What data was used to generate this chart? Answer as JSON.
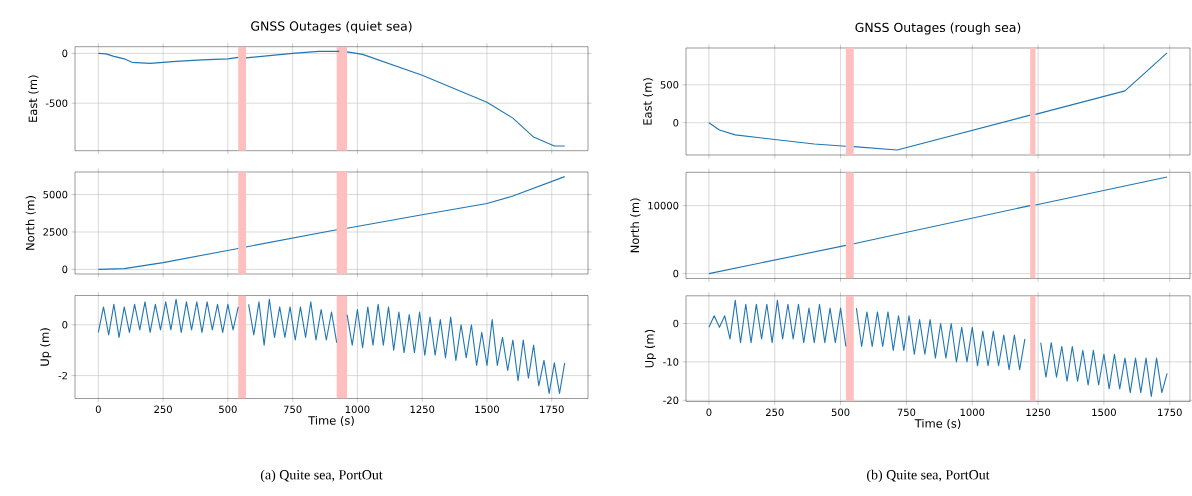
{
  "chart_data": [
    {
      "type": "line",
      "title": "GNSS Outages (quiet sea)",
      "ylabel": "East (m)",
      "xlim": [
        -90,
        1890
      ],
      "ylim": [
        -977,
        67
      ],
      "xticks": [
        0,
        250,
        500,
        750,
        1000,
        1250,
        1500,
        1750
      ],
      "yticks": [
        -500,
        0
      ],
      "tick_labels": "y",
      "grid": true,
      "bands": [
        {
          "axis": "x",
          "from": 540,
          "to": 570,
          "color": "#ffbfbf"
        },
        {
          "axis": "x",
          "from": 920,
          "to": 960,
          "color": "#ffbfbf"
        }
      ],
      "series": [
        {
          "color": "#1f77b4",
          "x": [
            0,
            30,
            60,
            100,
            130,
            200,
            300,
            400,
            500,
            540,
            555,
            570,
            750,
            850,
            930,
            945,
            960,
            1020,
            1250,
            1500,
            1600,
            1680,
            1760,
            1800
          ],
          "values": [
            0,
            -5,
            -30,
            -55,
            -90,
            -100,
            -80,
            -65,
            -55,
            -40,
            null,
            -45,
            0,
            20,
            20,
            null,
            15,
            -10,
            -220,
            -490,
            -650,
            -840,
            -930,
            -930
          ]
        }
      ]
    },
    {
      "type": "line",
      "title": "GNSS Outages (rough sea)",
      "ylabel": "East (m)",
      "xlim": [
        -87,
        1827
      ],
      "ylim": [
        -425,
        985
      ],
      "xticks": [
        0,
        250,
        500,
        750,
        1000,
        1250,
        1500,
        1750
      ],
      "yticks": [
        0,
        500
      ],
      "tick_labels": "y",
      "grid": true,
      "bands": [
        {
          "axis": "x",
          "from": 520,
          "to": 550,
          "color": "#ffbfbf"
        },
        {
          "axis": "x",
          "from": 1220,
          "to": 1240,
          "color": "#ffbfbf"
        }
      ],
      "series": [
        {
          "color": "#1f77b4",
          "x": [
            0,
            40,
            100,
            250,
            400,
            520,
            535,
            550,
            715,
            1220,
            1230,
            1240,
            1580,
            1740
          ],
          "values": [
            0,
            -95,
            -160,
            -220,
            -280,
            -310,
            null,
            -315,
            -360,
            100,
            null,
            110,
            420,
            920
          ]
        }
      ]
    },
    {
      "type": "line",
      "ylabel": "North (m)",
      "xlim": [
        -90,
        1890
      ],
      "ylim": [
        -310,
        6510
      ],
      "xticks": [
        0,
        250,
        500,
        750,
        1000,
        1250,
        1500,
        1750
      ],
      "yticks": [
        0,
        2500,
        5000
      ],
      "tick_labels": "y",
      "grid": true,
      "bands": [
        {
          "axis": "x",
          "from": 540,
          "to": 570,
          "color": "#ffbfbf"
        },
        {
          "axis": "x",
          "from": 920,
          "to": 960,
          "color": "#ffbfbf"
        }
      ],
      "series": [
        {
          "color": "#1f77b4",
          "x": [
            0,
            100,
            250,
            540,
            555,
            570,
            920,
            940,
            960,
            1250,
            1500,
            1600,
            1800
          ],
          "values": [
            0,
            50,
            450,
            1400,
            null,
            1500,
            2650,
            null,
            2750,
            3650,
            4400,
            4900,
            6200
          ]
        }
      ]
    },
    {
      "type": "line",
      "ylabel": "North (m)",
      "xlim": [
        -87,
        1827
      ],
      "ylim": [
        -720,
        14900
      ],
      "xticks": [
        0,
        250,
        500,
        750,
        1000,
        1250,
        1500,
        1750
      ],
      "yticks": [
        0,
        10000
      ],
      "tick_labels": "y",
      "grid": true,
      "bands": [
        {
          "axis": "x",
          "from": 520,
          "to": 550,
          "color": "#ffbfbf"
        },
        {
          "axis": "x",
          "from": 1220,
          "to": 1240,
          "color": "#ffbfbf"
        }
      ],
      "series": [
        {
          "color": "#1f77b4",
          "x": [
            0,
            520,
            535,
            550,
            1220,
            1230,
            1240,
            1740
          ],
          "values": [
            0,
            4150,
            null,
            4400,
            10000,
            null,
            10100,
            14200
          ]
        }
      ]
    },
    {
      "type": "line",
      "ylabel": "Up (m)",
      "xlabel": "Time (s)",
      "xlim": [
        -90,
        1890
      ],
      "ylim": [
        -2.9,
        1.15
      ],
      "xticks": [
        0,
        250,
        500,
        750,
        1000,
        1250,
        1500,
        1750
      ],
      "yticks": [
        -2,
        0
      ],
      "grid": true,
      "annotations": [
        "(a) Quite sea, PortOut"
      ],
      "bands": [
        {
          "axis": "x",
          "from": 540,
          "to": 570,
          "color": "#ffbfbf"
        },
        {
          "axis": "x",
          "from": 920,
          "to": 960,
          "color": "#ffbfbf"
        }
      ],
      "series": [
        {
          "color": "#1f77b4",
          "x": [
            0,
            20,
            40,
            60,
            80,
            100,
            120,
            140,
            160,
            180,
            200,
            220,
            240,
            260,
            280,
            300,
            320,
            340,
            360,
            380,
            400,
            420,
            440,
            460,
            480,
            500,
            520,
            540,
            560,
            580,
            600,
            620,
            640,
            660,
            680,
            700,
            720,
            740,
            760,
            780,
            800,
            820,
            840,
            860,
            880,
            900,
            920,
            940,
            960,
            980,
            1000,
            1020,
            1040,
            1060,
            1080,
            1100,
            1120,
            1140,
            1160,
            1180,
            1200,
            1220,
            1240,
            1260,
            1280,
            1300,
            1320,
            1340,
            1360,
            1380,
            1400,
            1420,
            1440,
            1460,
            1480,
            1500,
            1520,
            1540,
            1560,
            1580,
            1600,
            1620,
            1640,
            1660,
            1680,
            1700,
            1720,
            1740,
            1760,
            1780,
            1800
          ],
          "values": [
            -0.3,
            0.7,
            -0.4,
            0.8,
            -0.5,
            0.7,
            -0.3,
            0.8,
            -0.2,
            0.9,
            -0.3,
            0.8,
            -0.2,
            0.9,
            -0.2,
            1.0,
            -0.3,
            0.9,
            -0.2,
            0.9,
            -0.3,
            0.9,
            -0.2,
            0.8,
            -0.3,
            0.8,
            -0.2,
            0.7,
            null,
            0.8,
            -0.4,
            0.9,
            -0.8,
            1.0,
            -0.5,
            0.7,
            -0.5,
            0.7,
            -0.6,
            0.7,
            -0.5,
            0.9,
            -0.6,
            0.6,
            -0.6,
            0.5,
            -0.7,
            null,
            0.4,
            -0.8,
            0.6,
            -0.9,
            0.7,
            -0.8,
            0.8,
            -0.8,
            0.7,
            -1.0,
            0.5,
            -1.1,
            0.4,
            -1.1,
            0.5,
            -1.2,
            0.3,
            -1.2,
            0.2,
            -1.3,
            0.3,
            -1.4,
            0.0,
            -1.3,
            0.0,
            -1.6,
            -0.3,
            -1.6,
            0.2,
            -1.6,
            -0.5,
            -1.8,
            -0.6,
            -2.2,
            -0.6,
            -2.1,
            -0.8,
            -2.4,
            -1.4,
            -2.7,
            -1.5,
            -2.7,
            -1.5
          ]
        }
      ]
    },
    {
      "type": "line",
      "ylabel": "Up (m)",
      "xlabel": "Time (s)",
      "xlim": [
        -87,
        1827
      ],
      "ylim": [
        -20.3,
        7.2
      ],
      "xticks": [
        0,
        250,
        500,
        750,
        1000,
        1250,
        1500,
        1750
      ],
      "yticks": [
        -20,
        -10,
        0
      ],
      "grid": true,
      "annotations": [
        "(b) Quite sea, PortOut"
      ],
      "bands": [
        {
          "axis": "x",
          "from": 520,
          "to": 550,
          "color": "#ffbfbf"
        },
        {
          "axis": "x",
          "from": 1220,
          "to": 1240,
          "color": "#ffbfbf"
        }
      ],
      "series": [
        {
          "color": "#1f77b4",
          "x": [
            0,
            20,
            40,
            60,
            80,
            100,
            120,
            140,
            160,
            180,
            200,
            220,
            240,
            260,
            280,
            300,
            320,
            340,
            360,
            380,
            400,
            420,
            440,
            460,
            480,
            500,
            520,
            540,
            560,
            580,
            600,
            620,
            640,
            660,
            680,
            700,
            720,
            740,
            760,
            780,
            800,
            820,
            840,
            860,
            880,
            900,
            920,
            940,
            960,
            980,
            1000,
            1020,
            1040,
            1060,
            1080,
            1100,
            1120,
            1140,
            1160,
            1180,
            1200,
            1230,
            1260,
            1280,
            1300,
            1320,
            1340,
            1360,
            1380,
            1400,
            1420,
            1440,
            1460,
            1480,
            1500,
            1520,
            1540,
            1560,
            1580,
            1600,
            1620,
            1640,
            1660,
            1680,
            1700,
            1720,
            1740
          ],
          "values": [
            -1,
            2,
            -1,
            2,
            -4,
            6,
            -5,
            5,
            -5,
            5,
            -4,
            5,
            -5,
            6,
            -4,
            5,
            -4,
            5,
            -5,
            4,
            -5,
            5,
            -5,
            4,
            -5,
            4,
            -6,
            null,
            4,
            -6,
            3,
            -6,
            3,
            -6,
            3,
            -7,
            2,
            -7,
            2,
            -8,
            1,
            -8,
            1,
            -9,
            0,
            -9,
            0,
            -10,
            -1,
            -10,
            -1,
            -11,
            -2,
            -11,
            -2,
            -11,
            -3,
            -12,
            -3,
            -12,
            -4,
            null,
            -5,
            -14,
            -5,
            -14,
            -6,
            -15,
            -6,
            -15,
            -7,
            -16,
            -7,
            -16,
            -8,
            -17,
            -8,
            -17,
            -9,
            -18,
            -9,
            -18,
            -9,
            -19,
            -9,
            -18,
            -13
          ]
        }
      ]
    }
  ]
}
